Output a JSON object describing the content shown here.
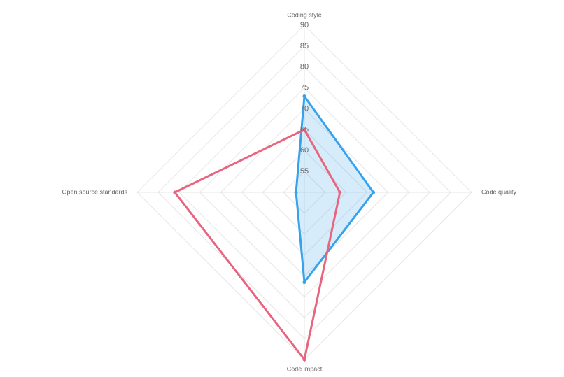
{
  "chart_data": {
    "type": "radar",
    "categories": [
      "Coding style",
      "Code quality",
      "Code impact",
      "Open source standards"
    ],
    "rlim": [
      50,
      90
    ],
    "rticks": [
      55,
      60,
      65,
      70,
      75,
      80,
      85,
      90
    ],
    "grid": true,
    "series": [
      {
        "color": "#36a2eb",
        "fill": "rgba(54,162,235,0.2)",
        "values": [
          73,
          66.5,
          71.5,
          52
        ]
      },
      {
        "color": "#e8647f",
        "values": [
          65,
          58.5,
          90,
          81
        ]
      }
    ]
  }
}
